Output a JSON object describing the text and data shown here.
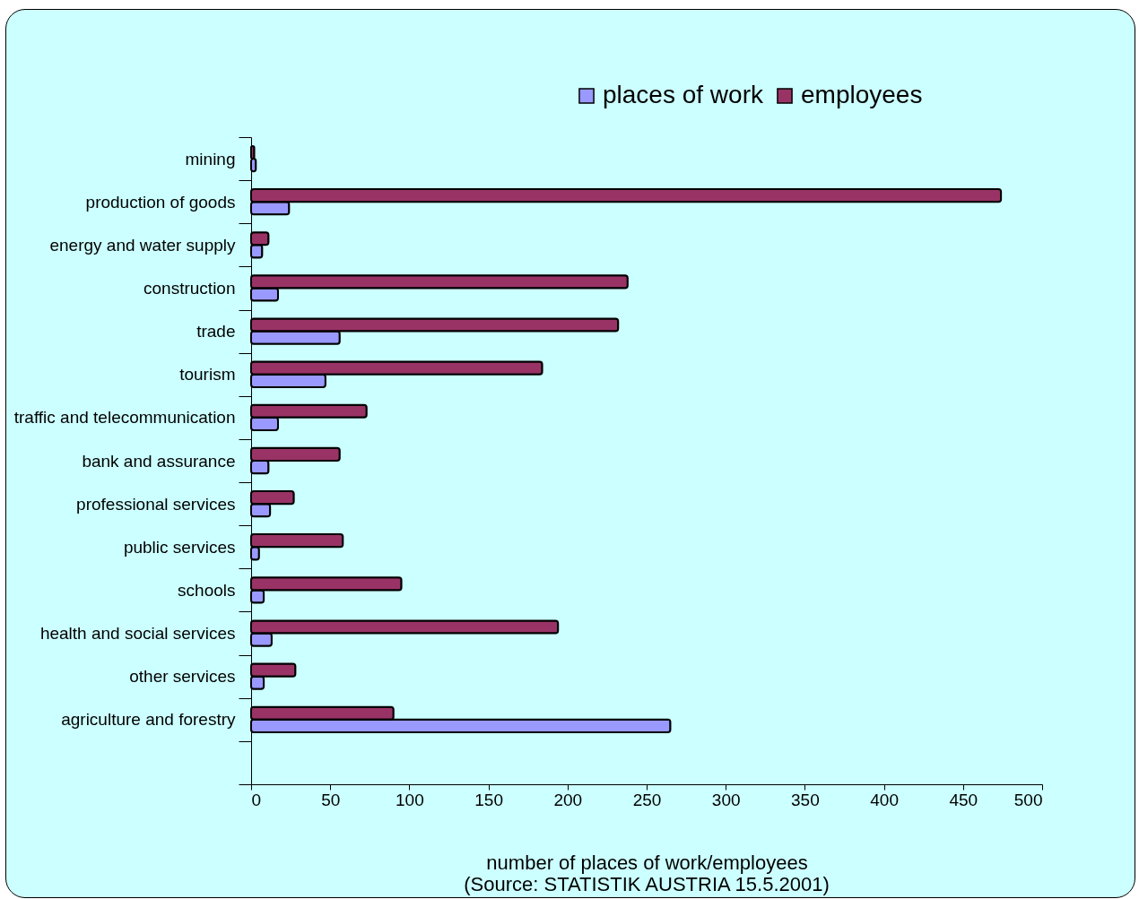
{
  "chart_data": {
    "type": "bar",
    "orientation": "horizontal",
    "xlabel": "number of places of work/employees",
    "annotations": [
      "(Source: STATISTIK AUSTRIA 15.5.2001)"
    ],
    "categories": [
      "mining",
      "production of goods",
      "energy and water supply",
      "construction",
      "trade",
      "tourism",
      "traffic and telecommunication",
      "bank and assurance",
      "professional services",
      "public services",
      "schools",
      "health and social services",
      "other services",
      "agriculture and forestry",
      null
    ],
    "series": [
      {
        "name": "places of work",
        "color": "#9999ff",
        "values": [
          3,
          24,
          7,
          17,
          56,
          47,
          17,
          11,
          12,
          5,
          8,
          13,
          8,
          265,
          null
        ]
      },
      {
        "name": "employees",
        "color": "#993366",
        "values": [
          2,
          474,
          11,
          238,
          232,
          184,
          73,
          56,
          27,
          58,
          95,
          194,
          28,
          90,
          null
        ]
      }
    ],
    "xlim": [
      0,
      500
    ],
    "xticks": [
      0,
      50,
      100,
      150,
      200,
      250,
      300,
      350,
      400,
      450,
      500
    ],
    "grid": false,
    "legend": "top right"
  }
}
